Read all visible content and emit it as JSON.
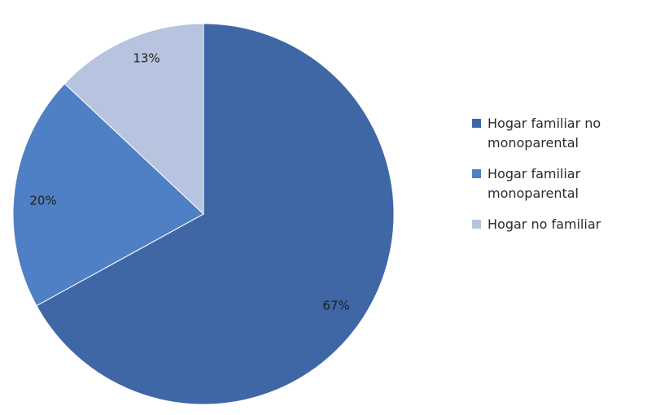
{
  "chart_data": {
    "type": "pie",
    "slices": [
      {
        "label": "Hogar familiar no monoparental",
        "legend_label": "Hogar familiar no\nmonoparental",
        "value": 67,
        "value_label": "67%",
        "color": "#3f67a6"
      },
      {
        "label": "Hogar familiar monoparental",
        "legend_label": "Hogar familiar\nmonoparental",
        "value": 20,
        "value_label": "20%",
        "color": "#4f7fc4"
      },
      {
        "label": "Hogar no familiar",
        "legend_label": "Hogar no familiar",
        "value": 13,
        "value_label": "13%",
        "color": "#b7c4df"
      }
    ],
    "legend_position": "right",
    "start_angle": "12 o'clock",
    "direction": "clockwise"
  }
}
